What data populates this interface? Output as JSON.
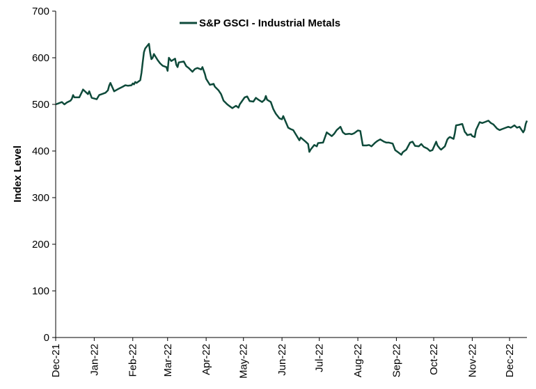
{
  "chart_data": {
    "type": "line",
    "title": "",
    "xlabel": "",
    "ylabel": "Index Level",
    "ylim": [
      0,
      700
    ],
    "yticks": [
      0,
      100,
      200,
      300,
      400,
      500,
      600,
      700
    ],
    "xlim": [
      "2021-12-01",
      "2022-12-15"
    ],
    "x_tick_labels": [
      "Dec-21",
      "Jan-22",
      "Feb-22",
      "Mar-22",
      "Apr-22",
      "May-22",
      "Jun-22",
      "Jul-22",
      "Aug-22",
      "Sep-22",
      "Oct-22",
      "Nov-22",
      "Dec-22"
    ],
    "x_tick_dates": [
      "2021-12-01",
      "2022-01-01",
      "2022-02-01",
      "2022-03-01",
      "2022-04-01",
      "2022-05-01",
      "2022-06-01",
      "2022-07-01",
      "2022-08-01",
      "2022-09-01",
      "2022-10-01",
      "2022-11-01",
      "2022-12-01"
    ],
    "grid": false,
    "legend_position": "top-center",
    "series": [
      {
        "name": "S&P GSCI - Industrial Metals",
        "color": "#0e4a3a",
        "points": [
          [
            "2021-12-01",
            500
          ],
          [
            "2021-12-03",
            502
          ],
          [
            "2021-12-06",
            505
          ],
          [
            "2021-12-08",
            500
          ],
          [
            "2021-12-10",
            504
          ],
          [
            "2021-12-13",
            508
          ],
          [
            "2021-12-14",
            512
          ],
          [
            "2021-12-15",
            520
          ],
          [
            "2021-12-16",
            515
          ],
          [
            "2021-12-20",
            515
          ],
          [
            "2021-12-22",
            526
          ],
          [
            "2021-12-23",
            532
          ],
          [
            "2021-12-27",
            522
          ],
          [
            "2021-12-28",
            528
          ],
          [
            "2021-12-30",
            514
          ],
          [
            "2022-01-03",
            511
          ],
          [
            "2022-01-05",
            520
          ],
          [
            "2022-01-07",
            522
          ],
          [
            "2022-01-10",
            525
          ],
          [
            "2022-01-12",
            530
          ],
          [
            "2022-01-13",
            540
          ],
          [
            "2022-01-14",
            546
          ],
          [
            "2022-01-17",
            528
          ],
          [
            "2022-01-19",
            531
          ],
          [
            "2022-01-21",
            534
          ],
          [
            "2022-01-24",
            538
          ],
          [
            "2022-01-26",
            541
          ],
          [
            "2022-01-28",
            540
          ],
          [
            "2022-01-31",
            541
          ],
          [
            "2022-02-01",
            545
          ],
          [
            "2022-02-02",
            543
          ],
          [
            "2022-02-03",
            548
          ],
          [
            "2022-02-04",
            546
          ],
          [
            "2022-02-07",
            552
          ],
          [
            "2022-02-08",
            568
          ],
          [
            "2022-02-09",
            590
          ],
          [
            "2022-02-10",
            612
          ],
          [
            "2022-02-11",
            620
          ],
          [
            "2022-02-14",
            630
          ],
          [
            "2022-02-15",
            610
          ],
          [
            "2022-02-16",
            597
          ],
          [
            "2022-02-17",
            600
          ],
          [
            "2022-02-18",
            608
          ],
          [
            "2022-02-21",
            595
          ],
          [
            "2022-02-23",
            588
          ],
          [
            "2022-02-25",
            583
          ],
          [
            "2022-02-28",
            580
          ],
          [
            "2022-03-01",
            572
          ],
          [
            "2022-03-02",
            600
          ],
          [
            "2022-03-04",
            593
          ],
          [
            "2022-03-07",
            598
          ],
          [
            "2022-03-08",
            585
          ],
          [
            "2022-03-09",
            580
          ],
          [
            "2022-03-10",
            590
          ],
          [
            "2022-03-14",
            592
          ],
          [
            "2022-03-16",
            582
          ],
          [
            "2022-03-18",
            578
          ],
          [
            "2022-03-21",
            570
          ],
          [
            "2022-03-23",
            576
          ],
          [
            "2022-03-25",
            578
          ],
          [
            "2022-03-28",
            575
          ],
          [
            "2022-03-29",
            580
          ],
          [
            "2022-03-31",
            565
          ],
          [
            "2022-04-01",
            555
          ],
          [
            "2022-04-04",
            542
          ],
          [
            "2022-04-07",
            544
          ],
          [
            "2022-04-08",
            538
          ],
          [
            "2022-04-11",
            530
          ],
          [
            "2022-04-13",
            522
          ],
          [
            "2022-04-15",
            508
          ],
          [
            "2022-04-18",
            500
          ],
          [
            "2022-04-20",
            496
          ],
          [
            "2022-04-22",
            492
          ],
          [
            "2022-04-25",
            497
          ],
          [
            "2022-04-27",
            493
          ],
          [
            "2022-04-28",
            500
          ],
          [
            "2022-05-02",
            515
          ],
          [
            "2022-05-04",
            517
          ],
          [
            "2022-05-06",
            507
          ],
          [
            "2022-05-09",
            506
          ],
          [
            "2022-05-11",
            514
          ],
          [
            "2022-05-13",
            510
          ],
          [
            "2022-05-16",
            505
          ],
          [
            "2022-05-18",
            510
          ],
          [
            "2022-05-19",
            518
          ],
          [
            "2022-05-20",
            510
          ],
          [
            "2022-05-23",
            505
          ],
          [
            "2022-05-25",
            490
          ],
          [
            "2022-05-26",
            485
          ],
          [
            "2022-05-27",
            480
          ],
          [
            "2022-05-30",
            470
          ],
          [
            "2022-06-01",
            468
          ],
          [
            "2022-06-02",
            475
          ],
          [
            "2022-06-06",
            450
          ],
          [
            "2022-06-08",
            447
          ],
          [
            "2022-06-10",
            445
          ],
          [
            "2022-06-13",
            432
          ],
          [
            "2022-06-15",
            423
          ],
          [
            "2022-06-16",
            429
          ],
          [
            "2022-06-20",
            420
          ],
          [
            "2022-06-22",
            415
          ],
          [
            "2022-06-23",
            398
          ],
          [
            "2022-06-24",
            403
          ],
          [
            "2022-06-27",
            413
          ],
          [
            "2022-06-29",
            410
          ],
          [
            "2022-06-30",
            417
          ],
          [
            "2022-07-04",
            418
          ],
          [
            "2022-07-05",
            425
          ],
          [
            "2022-07-07",
            440
          ],
          [
            "2022-07-11",
            432
          ],
          [
            "2022-07-13",
            437
          ],
          [
            "2022-07-15",
            445
          ],
          [
            "2022-07-18",
            452
          ],
          [
            "2022-07-20",
            440
          ],
          [
            "2022-07-22",
            436
          ],
          [
            "2022-07-25",
            437
          ],
          [
            "2022-07-27",
            436
          ],
          [
            "2022-07-29",
            438
          ],
          [
            "2022-08-01",
            444
          ],
          [
            "2022-08-03",
            443
          ],
          [
            "2022-08-05",
            412
          ],
          [
            "2022-08-08",
            412
          ],
          [
            "2022-08-10",
            413
          ],
          [
            "2022-08-12",
            410
          ],
          [
            "2022-08-15",
            418
          ],
          [
            "2022-08-17",
            422
          ],
          [
            "2022-08-19",
            425
          ],
          [
            "2022-08-22",
            420
          ],
          [
            "2022-08-24",
            418
          ],
          [
            "2022-08-26",
            418
          ],
          [
            "2022-08-29",
            416
          ],
          [
            "2022-08-31",
            402
          ],
          [
            "2022-09-02",
            398
          ],
          [
            "2022-09-05",
            392
          ],
          [
            "2022-09-06",
            397
          ],
          [
            "2022-09-08",
            401
          ],
          [
            "2022-09-09",
            403
          ],
          [
            "2022-09-12",
            418
          ],
          [
            "2022-09-14",
            420
          ],
          [
            "2022-09-16",
            411
          ],
          [
            "2022-09-19",
            410
          ],
          [
            "2022-09-21",
            415
          ],
          [
            "2022-09-23",
            409
          ],
          [
            "2022-09-26",
            405
          ],
          [
            "2022-09-28",
            400
          ],
          [
            "2022-09-30",
            402
          ],
          [
            "2022-10-03",
            420
          ],
          [
            "2022-10-04",
            412
          ],
          [
            "2022-10-06",
            405
          ],
          [
            "2022-10-07",
            403
          ],
          [
            "2022-10-10",
            410
          ],
          [
            "2022-10-12",
            425
          ],
          [
            "2022-10-13",
            428
          ],
          [
            "2022-10-14",
            430
          ],
          [
            "2022-10-17",
            426
          ],
          [
            "2022-10-18",
            438
          ],
          [
            "2022-10-19",
            455
          ],
          [
            "2022-10-21",
            456
          ],
          [
            "2022-10-24",
            458
          ],
          [
            "2022-10-26",
            441
          ],
          [
            "2022-10-27",
            438
          ],
          [
            "2022-10-28",
            434
          ],
          [
            "2022-10-31",
            436
          ],
          [
            "2022-11-01",
            432
          ],
          [
            "2022-11-03",
            430
          ],
          [
            "2022-11-04",
            445
          ],
          [
            "2022-11-07",
            462
          ],
          [
            "2022-11-09",
            460
          ],
          [
            "2022-11-11",
            462
          ],
          [
            "2022-11-14",
            465
          ],
          [
            "2022-11-16",
            460
          ],
          [
            "2022-11-18",
            457
          ],
          [
            "2022-11-21",
            448
          ],
          [
            "2022-11-23",
            445
          ],
          [
            "2022-11-25",
            447
          ],
          [
            "2022-11-28",
            450
          ],
          [
            "2022-11-30",
            452
          ],
          [
            "2022-12-02",
            450
          ],
          [
            "2022-12-05",
            455
          ],
          [
            "2022-12-07",
            450
          ],
          [
            "2022-12-09",
            452
          ],
          [
            "2022-12-12",
            440
          ],
          [
            "2022-12-13",
            445
          ],
          [
            "2022-12-14",
            458
          ],
          [
            "2022-12-15",
            465
          ]
        ]
      }
    ]
  }
}
